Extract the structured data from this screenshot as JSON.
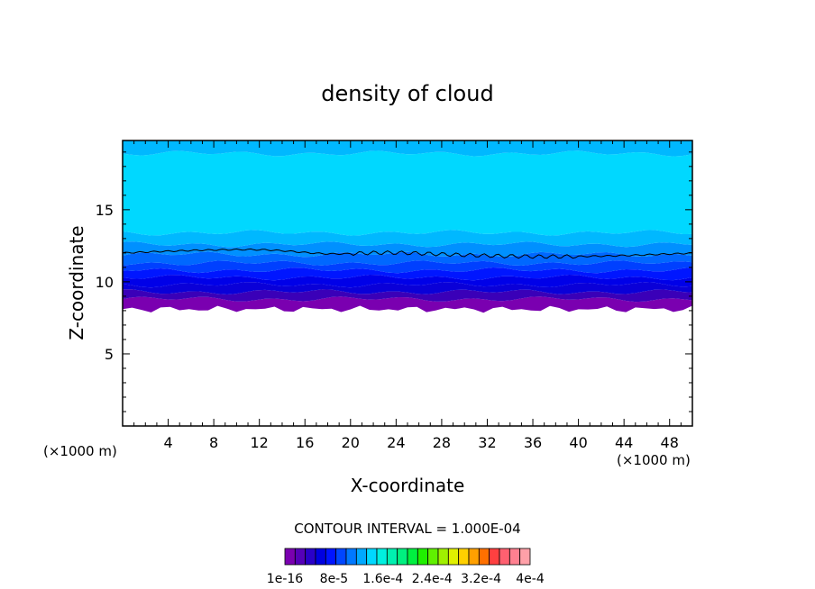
{
  "chart_data": {
    "type": "heatmap",
    "title": "density of cloud",
    "xlabel": "X-coordinate",
    "ylabel": "Z-coordinate",
    "x_unit_label": "(×1000 m)",
    "y_unit_label": "(×1000 m)",
    "xlim": [
      0,
      50
    ],
    "ylim": [
      0,
      19.8
    ],
    "x_ticks": [
      4,
      8,
      12,
      16,
      20,
      24,
      28,
      32,
      36,
      40,
      44,
      48
    ],
    "y_ticks": [
      5,
      10,
      15
    ],
    "contour_interval_label": "CONTOUR INTERVAL = 1.000E-04",
    "colorbar": {
      "colors": [
        "#7a00b0",
        "#5500b8",
        "#2a00c8",
        "#0000e0",
        "#0014ff",
        "#0046ff",
        "#0078ff",
        "#00a8ff",
        "#00d8ff",
        "#00f0e0",
        "#00f0b0",
        "#00f080",
        "#00f040",
        "#20f000",
        "#60f000",
        "#a0f000",
        "#e0f000",
        "#ffd000",
        "#ffa000",
        "#ff7000",
        "#ff4040",
        "#ff6070",
        "#ff8090",
        "#ffa0a8"
      ],
      "tick_labels": [
        "1e-16",
        "8e-5",
        "1.6e-4",
        "2.4e-4",
        "3.2e-4",
        "4e-4"
      ]
    },
    "bands": [
      {
        "z_bottom": 8.4,
        "z_top": 8.8,
        "color": "#7a00b0"
      },
      {
        "z_bottom": 8.8,
        "z_top": 9.3,
        "color": "#3a00b8"
      },
      {
        "z_bottom": 9.3,
        "z_top": 9.8,
        "color": "#0a00d8"
      },
      {
        "z_bottom": 9.8,
        "z_top": 10.3,
        "color": "#0000e8"
      },
      {
        "z_bottom": 10.3,
        "z_top": 10.8,
        "color": "#0016ff"
      },
      {
        "z_bottom": 10.8,
        "z_top": 11.3,
        "color": "#0040ff"
      },
      {
        "z_bottom": 11.3,
        "z_top": 11.9,
        "color": "#0068ff"
      },
      {
        "z_bottom": 11.9,
        "z_top": 12.6,
        "color": "#0090ff"
      },
      {
        "z_bottom": 12.6,
        "z_top": 13.4,
        "color": "#00b8ff"
      },
      {
        "z_bottom": 13.4,
        "z_top": 18.9,
        "color": "#00d8ff"
      },
      {
        "z_bottom": 18.9,
        "z_top": 19.8,
        "color": "#00b8ff"
      }
    ],
    "bottom_edge_z": 8.1,
    "contour_line_z": 12.0
  }
}
